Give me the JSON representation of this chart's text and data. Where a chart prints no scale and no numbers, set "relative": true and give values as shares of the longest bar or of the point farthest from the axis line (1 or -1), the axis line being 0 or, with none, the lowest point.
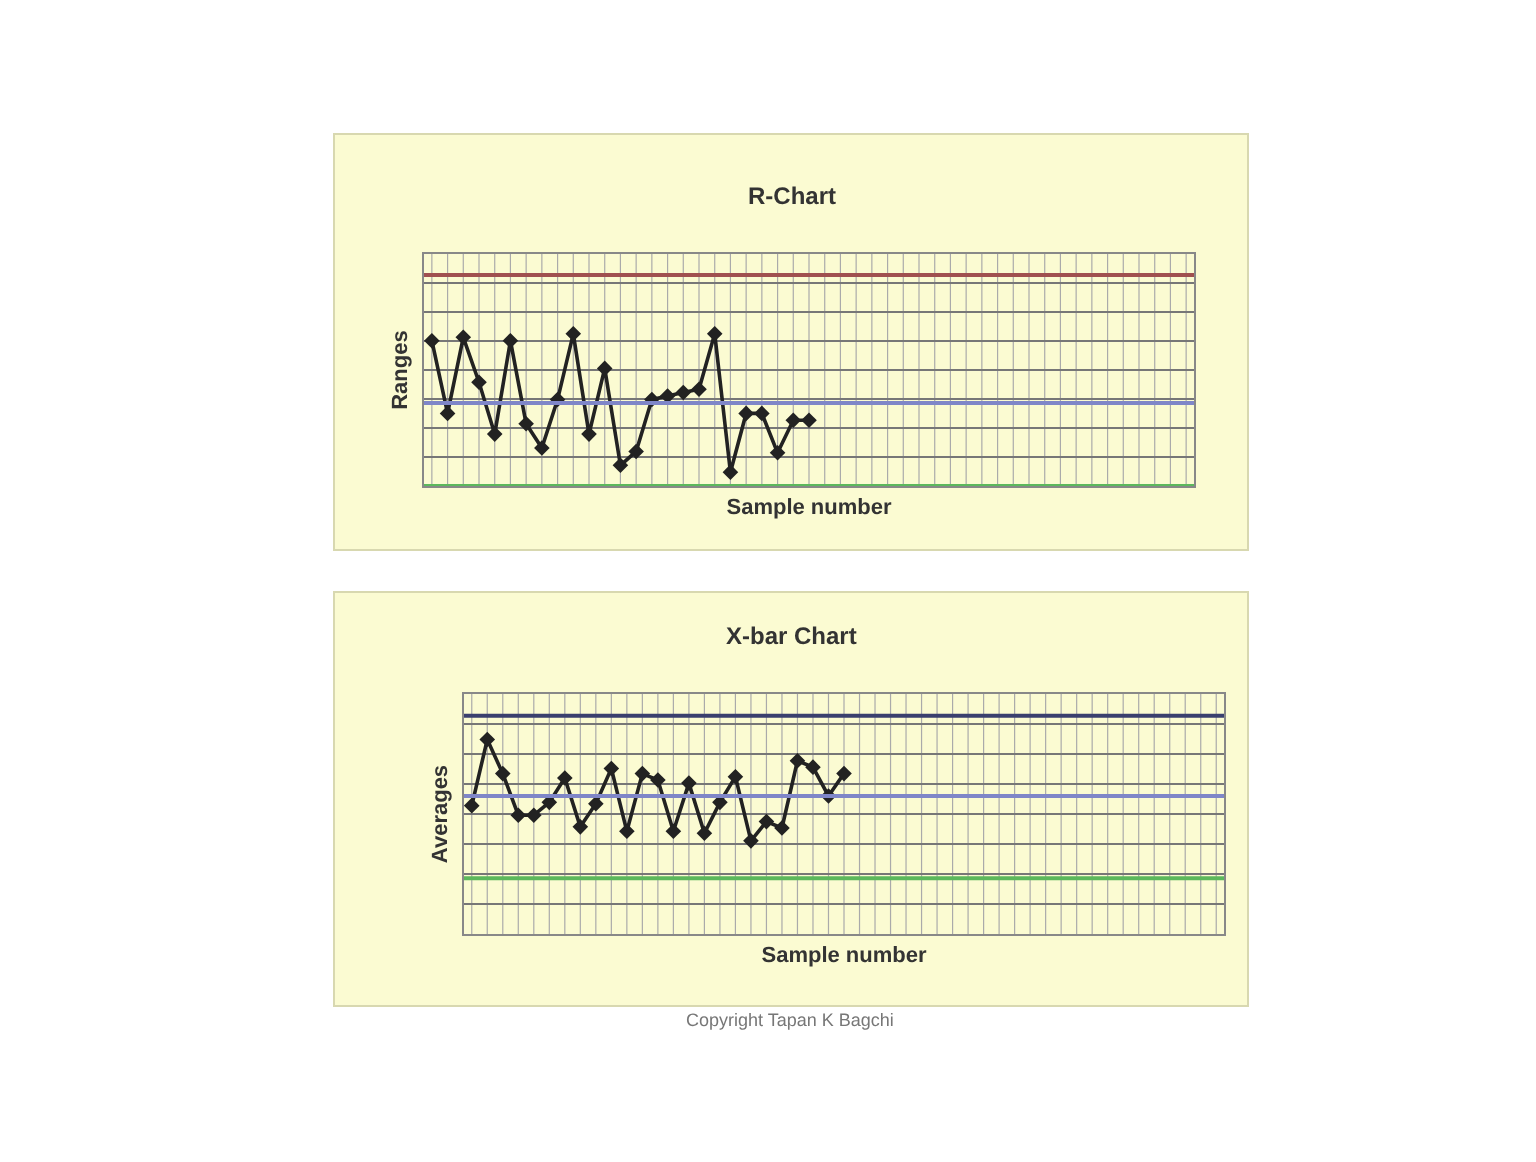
{
  "chart_data": [
    {
      "type": "line",
      "title": "R-Chart",
      "xlabel": "Sample number",
      "ylabel": "Ranges",
      "relative": true,
      "grid": true,
      "marker": "diamond",
      "tick_labels": false,
      "categories": [
        null,
        null,
        null,
        null,
        null,
        null,
        null,
        null,
        null,
        null,
        null,
        null,
        null,
        null,
        null,
        null,
        null,
        null,
        null,
        null,
        null,
        null,
        null,
        null,
        null,
        null,
        null,
        null,
        null,
        null,
        null,
        null,
        null,
        null,
        null,
        null,
        null,
        null,
        null,
        null,
        null,
        null,
        null,
        null,
        null,
        null,
        null,
        null,
        null
      ],
      "series": [
        {
          "color": "#222222",
          "values": [
            0.955,
            0.477,
            0.977,
            0.682,
            0.341,
            0.955,
            0.409,
            0.25,
            0.568,
            1,
            0.341,
            0.773,
            0.136,
            0.227,
            0.568,
            0.591,
            0.614,
            0.636,
            1,
            0.091,
            0.477,
            0.477,
            0.218,
            0.432,
            0.432,
            null,
            null,
            null,
            null,
            null,
            null,
            null,
            null,
            null,
            null,
            null,
            null,
            null,
            null,
            null,
            null,
            null,
            null,
            null,
            null,
            null,
            null,
            null,
            null
          ]
        }
      ],
      "ref_lines": [
        {
          "axis": "y",
          "value": 1.386,
          "color": "#a05050"
        },
        {
          "axis": "y",
          "value": 0.545,
          "color": "#7f86c8"
        },
        {
          "axis": "y",
          "value": 0,
          "color": "#5cb85c"
        }
      ]
    },
    {
      "type": "line",
      "title": "X-bar Chart",
      "xlabel": "Sample number",
      "ylabel": "Averages",
      "relative": true,
      "grid": true,
      "marker": "diamond",
      "tick_labels": false,
      "categories": [
        null,
        null,
        null,
        null,
        null,
        null,
        null,
        null,
        null,
        null,
        null,
        null,
        null,
        null,
        null,
        null,
        null,
        null,
        null,
        null,
        null,
        null,
        null,
        null,
        null,
        null,
        null,
        null,
        null,
        null,
        null,
        null,
        null,
        null,
        null,
        null,
        null,
        null,
        null,
        null,
        null,
        null,
        null,
        null,
        null,
        null,
        null,
        null,
        null
      ],
      "series": [
        {
          "color": "#222222",
          "values": [
            0.66,
            1,
            0.825,
            0.611,
            0.611,
            0.677,
            0.802,
            0.551,
            0.67,
            0.851,
            0.528,
            0.825,
            0.792,
            0.528,
            0.776,
            0.518,
            0.677,
            0.809,
            0.479,
            0.578,
            0.545,
            0.891,
            0.858,
            0.71,
            0.825,
            null,
            null,
            null,
            null,
            null,
            null,
            null,
            null,
            null,
            null,
            null,
            null,
            null,
            null,
            null,
            null,
            null,
            null,
            null,
            null,
            null,
            null,
            null,
            null
          ]
        }
      ],
      "ref_lines": [
        {
          "axis": "y",
          "value": 1.122,
          "color": "#3a3f6e"
        },
        {
          "axis": "y",
          "value": 0.71,
          "color": "#7f86c8"
        },
        {
          "axis": "y",
          "value": 0.287,
          "color": "#5cb85c"
        }
      ],
      "annotations": [
        "Copyright Tapan K Bagchi"
      ]
    }
  ]
}
